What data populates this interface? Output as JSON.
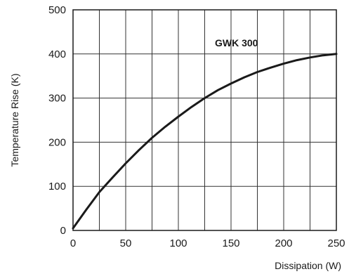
{
  "chart_data": {
    "type": "line",
    "title": "",
    "xlabel": "Dissipation (W)",
    "ylabel": "Temperature Rise (K)",
    "xlim": [
      0,
      250
    ],
    "ylim": [
      0,
      500
    ],
    "x_ticks": [
      0,
      50,
      100,
      150,
      200,
      250
    ],
    "y_ticks": [
      0,
      100,
      200,
      300,
      400,
      500
    ],
    "x_tick_labels": [
      "0",
      "50",
      "100",
      "150",
      "200",
      "250"
    ],
    "y_tick_labels": [
      "0",
      "100",
      "200",
      "300",
      "400",
      "500"
    ],
    "grid": true,
    "legend": "none",
    "annotation": "GWK 300",
    "series": [
      {
        "x": [
          0,
          12.5,
          25,
          37.5,
          50,
          62.5,
          75,
          87.5,
          100,
          112.5,
          125,
          137.5,
          150,
          162.5,
          175,
          187.5,
          200,
          212.5,
          225,
          237.5,
          250
        ],
        "y": [
          5,
          47,
          87,
          120,
          152,
          182,
          210,
          235,
          258,
          280,
          300,
          318,
          333,
          347,
          359,
          369,
          378,
          386,
          392,
          397,
          400
        ]
      }
    ]
  }
}
